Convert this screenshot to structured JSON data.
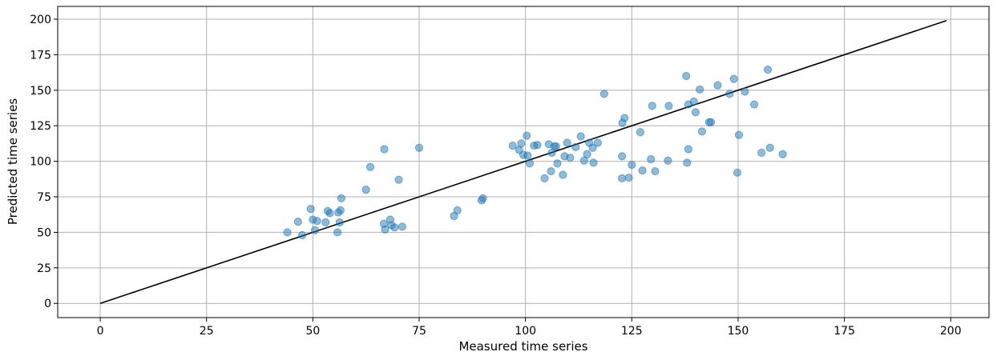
{
  "chart_data": {
    "type": "scatter",
    "title": "",
    "xlabel": "Measured time series",
    "ylabel": "Predicted time series",
    "xlim": [
      -10,
      209
    ],
    "ylim": [
      -10,
      209
    ],
    "xticks": [
      0,
      25,
      50,
      75,
      100,
      125,
      150,
      175,
      200
    ],
    "yticks": [
      0,
      25,
      50,
      75,
      100,
      125,
      150,
      175,
      200
    ],
    "grid": true,
    "legend": "none",
    "colors": {
      "points": "#1f77b4",
      "line": "#000000",
      "grid": "#b0b0b0"
    },
    "reference_line": {
      "x": [
        0,
        199
      ],
      "y": [
        0,
        199
      ]
    },
    "points": [
      [
        44,
        50
      ],
      [
        46.5,
        57.5
      ],
      [
        47.5,
        48
      ],
      [
        49.5,
        66.5
      ],
      [
        50,
        59
      ],
      [
        50.5,
        51.5
      ],
      [
        51,
        58
      ],
      [
        53,
        57
      ],
      [
        53.5,
        65
      ],
      [
        54,
        63.5
      ],
      [
        55.8,
        50
      ],
      [
        56,
        64
      ],
      [
        56.3,
        57
      ],
      [
        56.5,
        65.5
      ],
      [
        56.7,
        74
      ],
      [
        62.5,
        80
      ],
      [
        63.5,
        96
      ],
      [
        66.8,
        108.5
      ],
      [
        66.7,
        56
      ],
      [
        67,
        52
      ],
      [
        68.2,
        59
      ],
      [
        68.5,
        55
      ],
      [
        69.2,
        53.5
      ],
      [
        70.2,
        87
      ],
      [
        71,
        54
      ],
      [
        75,
        109.5
      ],
      [
        83.2,
        61.5
      ],
      [
        84,
        65.5
      ],
      [
        89.7,
        72.5
      ],
      [
        90,
        74
      ],
      [
        97,
        111
      ],
      [
        98.5,
        108
      ],
      [
        99,
        112.5
      ],
      [
        99.5,
        104.5
      ],
      [
        100.3,
        118
      ],
      [
        100.5,
        104
      ],
      [
        101,
        98.5
      ],
      [
        102,
        111
      ],
      [
        102.8,
        111.5
      ],
      [
        104.5,
        88
      ],
      [
        105.5,
        112
      ],
      [
        106,
        93
      ],
      [
        106.2,
        106
      ],
      [
        106.8,
        110.5
      ],
      [
        107.2,
        110.5
      ],
      [
        107.5,
        98.5
      ],
      [
        108.8,
        90.5
      ],
      [
        109.2,
        103.5
      ],
      [
        109.8,
        113
      ],
      [
        110.5,
        102.5
      ],
      [
        111.8,
        110
      ],
      [
        113,
        117.5
      ],
      [
        113.8,
        100.5
      ],
      [
        114.5,
        105
      ],
      [
        115,
        113
      ],
      [
        115.8,
        109.5
      ],
      [
        116,
        99
      ],
      [
        117,
        113
      ],
      [
        118.5,
        147.5
      ],
      [
        122.7,
        103.5
      ],
      [
        122.7,
        88
      ],
      [
        122.8,
        127
      ],
      [
        123.3,
        130.5
      ],
      [
        124.3,
        88.5
      ],
      [
        125,
        97.5
      ],
      [
        127,
        120.5
      ],
      [
        127.5,
        93.5
      ],
      [
        129.5,
        101.5
      ],
      [
        129.8,
        139
      ],
      [
        130.5,
        93
      ],
      [
        133.5,
        100.5
      ],
      [
        133.7,
        139
      ],
      [
        137.8,
        160
      ],
      [
        138,
        99
      ],
      [
        138.3,
        108.5
      ],
      [
        138.3,
        140
      ],
      [
        139.6,
        142
      ],
      [
        140,
        134.5
      ],
      [
        141,
        150.5
      ],
      [
        141.5,
        121
      ],
      [
        143.2,
        127.5
      ],
      [
        143.6,
        127.5
      ],
      [
        145.2,
        153.5
      ],
      [
        148,
        147.5
      ],
      [
        149,
        158
      ],
      [
        149.8,
        92
      ],
      [
        150.2,
        118.5
      ],
      [
        151.6,
        149
      ],
      [
        153.8,
        140
      ],
      [
        155.5,
        106
      ],
      [
        157,
        164.5
      ],
      [
        157.5,
        109.5
      ],
      [
        160.5,
        105
      ]
    ]
  }
}
